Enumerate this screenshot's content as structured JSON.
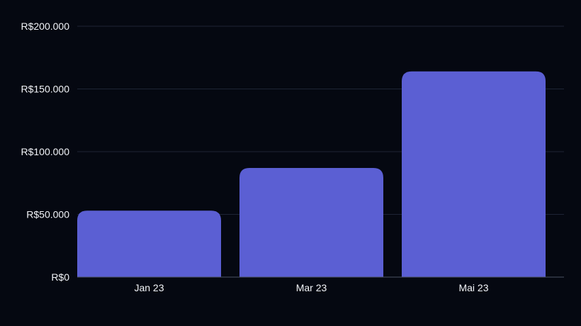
{
  "chart_data": {
    "type": "bar",
    "categories": [
      "Jan 23",
      "Mar 23",
      "Mai 23"
    ],
    "values": [
      53000,
      87000,
      164000
    ],
    "y_ticks": [
      {
        "value": 0,
        "label": "R$0"
      },
      {
        "value": 50000,
        "label": "R$50.000"
      },
      {
        "value": 100000,
        "label": "R$100.000"
      },
      {
        "value": 150000,
        "label": "R$150.000"
      },
      {
        "value": 200000,
        "label": "R$200.000"
      }
    ],
    "ylim": [
      0,
      200000
    ],
    "grid": true,
    "colors": {
      "background": "#050811",
      "bar": "#5b5fd3",
      "grid": "#1e2435",
      "axis": "#4b5263",
      "text": "#f2f4f8"
    }
  }
}
